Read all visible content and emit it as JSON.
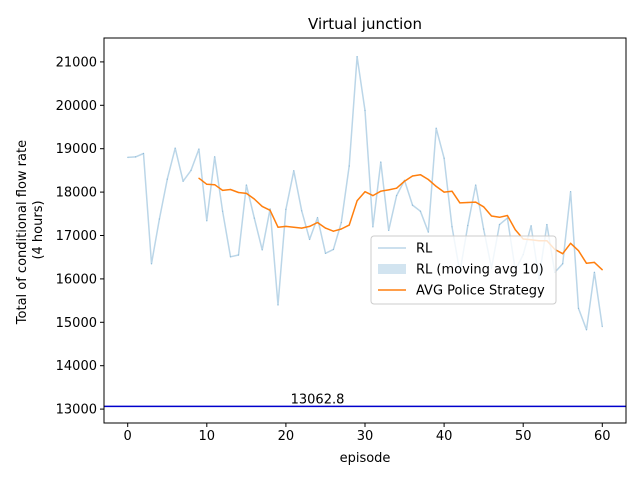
{
  "chart_data": {
    "type": "line",
    "title": "Virtual junction",
    "xlabel": "episode",
    "ylabel": [
      "Total of conditional flow rate",
      "(4 hours)"
    ],
    "xlim": [
      -3,
      63
    ],
    "ylim": [
      12680,
      21550
    ],
    "x_ticks": [
      0,
      10,
      20,
      30,
      40,
      50,
      60
    ],
    "y_ticks": [
      13000,
      14000,
      15000,
      16000,
      17000,
      18000,
      19000,
      20000,
      21000
    ],
    "grid": false,
    "legend": {
      "placement": "center-right",
      "entries": [
        {
          "label": "RL",
          "kind": "line"
        },
        {
          "label": "RL (moving avg 10)",
          "kind": "band"
        },
        {
          "label": "AVG Police Strategy",
          "kind": "line"
        }
      ]
    },
    "colors": {
      "rl": "#1f77b4",
      "moving_avg": "#ff7f0e",
      "band": "#1f77b4",
      "baseline": "#0000cc"
    },
    "series": [
      {
        "name": "RL",
        "x": [
          0,
          1,
          2,
          3,
          4,
          5,
          6,
          7,
          8,
          9,
          10,
          11,
          12,
          13,
          14,
          15,
          16,
          17,
          18,
          19,
          20,
          21,
          22,
          23,
          24,
          25,
          26,
          27,
          28,
          29,
          30,
          31,
          32,
          33,
          34,
          35,
          36,
          37,
          38,
          39,
          40,
          41,
          42,
          43,
          44,
          45,
          46,
          47,
          48,
          49,
          50,
          51,
          52,
          53,
          54,
          55,
          56,
          57,
          58,
          59,
          60
        ],
        "y": [
          18800,
          18810,
          18890,
          16350,
          17380,
          18300,
          19010,
          18250,
          18500,
          18990,
          17340,
          18810,
          17560,
          16510,
          16550,
          18160,
          17400,
          16670,
          17610,
          15400,
          17600,
          18490,
          17570,
          16910,
          17410,
          16590,
          16680,
          17300,
          18600,
          21120,
          19880,
          17200,
          18690,
          17120,
          17920,
          18270,
          17700,
          17560,
          17080,
          19470,
          18780,
          17200,
          16150,
          17230,
          18160,
          17150,
          16250,
          17250,
          17400,
          16200,
          16560,
          17220,
          16000,
          17250,
          16150,
          16350,
          18010,
          15320,
          14830,
          16150,
          14900
        ]
      },
      {
        "name": "RL (moving avg 10)",
        "x": [
          9,
          10,
          11,
          12,
          13,
          14,
          15,
          16,
          17,
          18,
          19,
          20,
          21,
          22,
          23,
          24,
          25,
          26,
          27,
          28,
          29,
          30,
          31,
          32,
          33,
          34,
          35,
          36,
          37,
          38,
          39,
          40,
          41,
          42,
          43,
          44,
          45,
          46,
          47,
          48,
          49,
          50,
          51,
          52,
          53,
          54,
          55,
          56,
          57,
          58,
          59,
          60
        ],
        "y": [
          18320,
          18180,
          18170,
          18040,
          18060,
          17990,
          17970,
          17840,
          17670,
          17580,
          17190,
          17210,
          17190,
          17170,
          17210,
          17300,
          17170,
          17100,
          17150,
          17240,
          17800,
          18010,
          17920,
          18020,
          18050,
          18090,
          18250,
          18370,
          18400,
          18290,
          18130,
          18000,
          18020,
          17750,
          17760,
          17770,
          17660,
          17450,
          17420,
          17460,
          17130,
          16920,
          16900,
          16880,
          16880,
          16680,
          16580,
          16820,
          16650,
          16360,
          16380,
          16210
        ]
      }
    ],
    "band": {
      "name": "RL (moving avg 10)",
      "x": [
        9,
        10,
        11,
        12,
        13,
        14,
        15,
        16,
        17,
        18,
        19,
        20,
        21,
        22,
        23,
        24,
        25,
        26,
        27,
        28,
        29,
        30,
        31,
        32,
        33,
        34,
        35,
        36,
        37,
        38,
        39,
        40,
        41,
        42,
        43,
        44,
        45,
        46,
        47,
        48,
        49,
        50,
        51,
        52,
        53,
        54,
        55,
        56,
        57,
        58,
        59,
        60
      ],
      "lower": [
        18320,
        18180,
        18170,
        18040,
        18060,
        17990,
        17970,
        17840,
        17670,
        17580,
        17190,
        17210,
        17190,
        17170,
        17210,
        17300,
        17170,
        17100,
        17150,
        17240,
        17800,
        18010,
        17920,
        18020,
        18050,
        18090,
        18250,
        18370,
        18400,
        18290,
        18130,
        18000,
        18020,
        17750,
        17760,
        17770,
        17660,
        17450,
        17420,
        17460,
        17130,
        16920,
        16900,
        16880,
        16880,
        16680,
        16580,
        16820,
        16650,
        16360,
        16380,
        16210
      ],
      "upper": [
        18320,
        18180,
        18170,
        18040,
        18060,
        17990,
        17970,
        17840,
        17670,
        17580,
        17190,
        17210,
        17190,
        17170,
        17210,
        17300,
        17170,
        17100,
        17150,
        17240,
        17800,
        18010,
        17920,
        18020,
        18050,
        18090,
        18250,
        18370,
        18400,
        18290,
        18130,
        18000,
        18020,
        17750,
        17760,
        17770,
        17660,
        17450,
        17420,
        17460,
        17130,
        16920,
        16900,
        16880,
        16880,
        16680,
        16580,
        16820,
        16650,
        16360,
        16380,
        16210
      ]
    },
    "baseline": {
      "name": "AVG Police Strategy",
      "value": 13062.8,
      "label": "13062.8",
      "label_x": 24
    }
  }
}
